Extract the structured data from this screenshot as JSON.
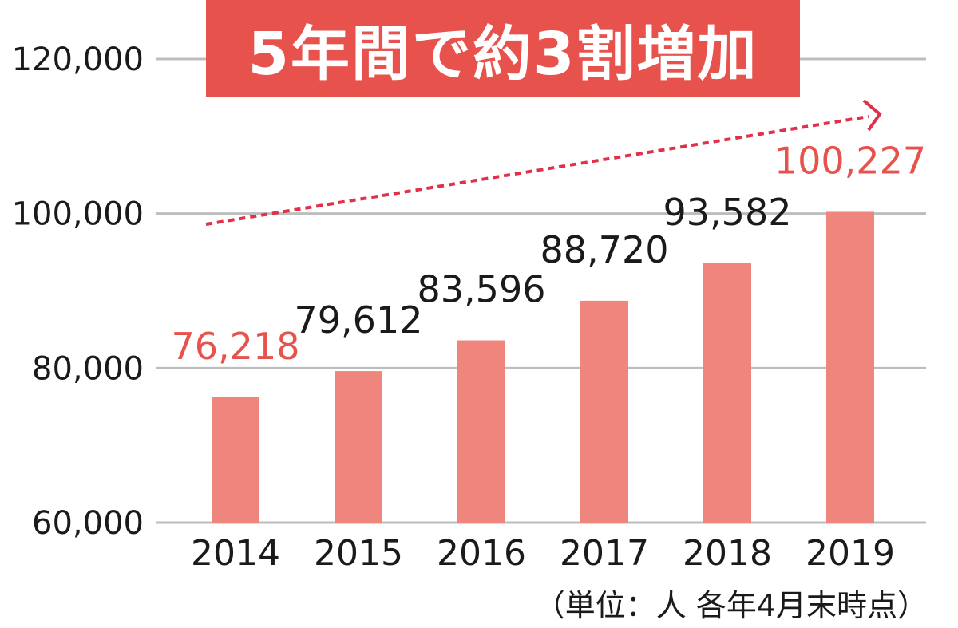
{
  "title": "5年間で約3割増加",
  "unit_note": "（単位：人 各年4月末時点）",
  "colors": {
    "bar": "#ef857c",
    "banner": "#e8524c",
    "highlight_label": "#e8524c",
    "normal_label": "#1a1a1a",
    "trend_arrow": "#e0304a",
    "grid": "#bdbdbd"
  },
  "chart_data": {
    "type": "bar",
    "categories": [
      "2014",
      "2015",
      "2016",
      "2017",
      "2018",
      "2019"
    ],
    "values": [
      76218,
      79612,
      83596,
      88720,
      93582,
      100227
    ],
    "data_labels": [
      "76,218",
      "79,612",
      "83,596",
      "88,720",
      "93,582",
      "100,227"
    ],
    "highlighted": [
      true,
      false,
      false,
      false,
      false,
      true
    ],
    "ylim": [
      60000,
      120000
    ],
    "yticks": [
      60000,
      80000,
      100000,
      120000
    ],
    "ytick_labels": [
      "60,000",
      "80,000",
      "100,000",
      "120,000"
    ],
    "grid": true,
    "trend_arrow": true
  }
}
